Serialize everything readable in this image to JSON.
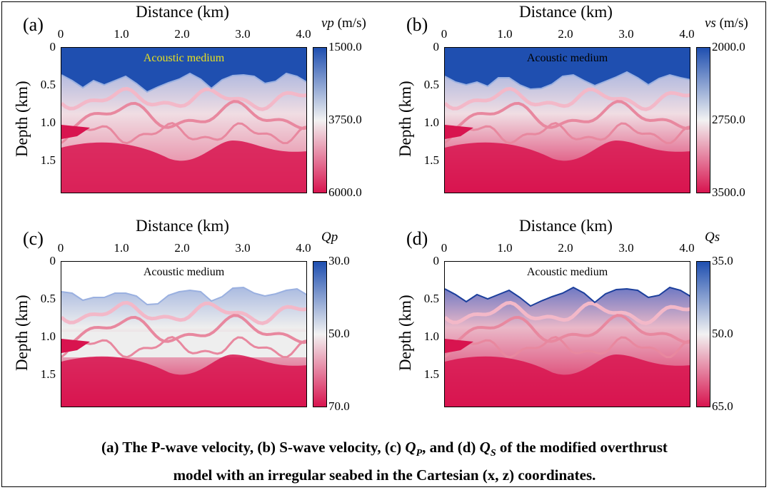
{
  "xaxis_title": "Distance (km)",
  "yaxis_title": "Depth (km)",
  "x_ticks": [
    "0",
    "1.0",
    "2.0",
    "3.0",
    "4.0"
  ],
  "y_ticks": [
    "0",
    "0.5",
    "1.0",
    "1.5"
  ],
  "acoustic_label": "Acoustic medium",
  "panels": [
    {
      "label": "(a)",
      "cb_symbol": "vp",
      "cb_unit": " (m/s)",
      "cb_ticks": [
        "1500.0",
        "3750.0",
        "6000.0"
      ],
      "cb_min": 1500,
      "cb_max": 6000
    },
    {
      "label": "(b)",
      "cb_symbol": "vs",
      "cb_unit": " (m/s)",
      "cb_ticks": [
        "2000.0",
        "2750.0",
        "3500.0"
      ],
      "cb_min": 2000,
      "cb_max": 3500
    },
    {
      "label": "(c)",
      "cb_symbol": "Qp",
      "cb_unit": "",
      "cb_ticks": [
        "30.0",
        "50.0",
        "70.0"
      ],
      "cb_min": 30,
      "cb_max": 70
    },
    {
      "label": "(d)",
      "cb_symbol": "Qs",
      "cb_unit": "",
      "cb_ticks": [
        "35.0",
        "50.0",
        "65.0"
      ],
      "cb_min": 35,
      "cb_max": 65
    }
  ],
  "caption": {
    "line1_a": "(a) The P-wave velocity, (b) S-wave velocity, (c) ",
    "qp_base": "Q",
    "qp_sub": "P",
    "line1_b": ", and (d) ",
    "qs_base": "Q",
    "qs_sub": "S",
    "line1_c": " of the modified overthrust",
    "line2": "model with an irregular seabed in the Cartesian (x, z) coordinates."
  },
  "colors": {
    "blue": "#1f4fb0",
    "white": "#f2f2f2",
    "red": "#d8144f",
    "acoustic_a": "#e8e020",
    "acoustic_other": "#000000"
  }
}
